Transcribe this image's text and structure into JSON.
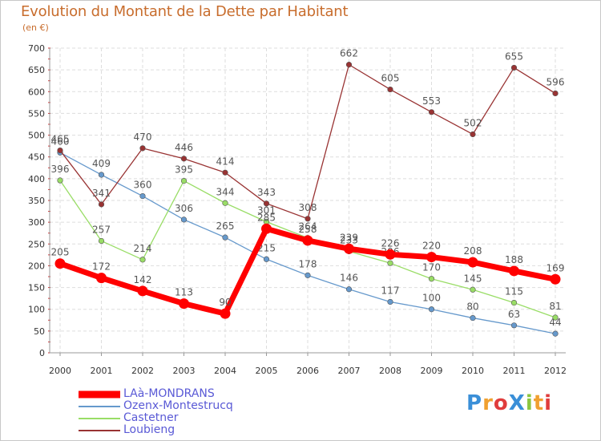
{
  "title": "Evolution du Montant de la Dette par Habitant",
  "unit": "(en €)",
  "brand": "ProXiti",
  "chart_data": {
    "type": "line",
    "categories": [
      "2000",
      "2001",
      "2002",
      "2003",
      "2004",
      "2005",
      "2006",
      "2007",
      "2008",
      "2009",
      "2010",
      "2011",
      "2012"
    ],
    "ylim": [
      0,
      700
    ],
    "yticks": [
      0,
      50,
      100,
      150,
      200,
      250,
      300,
      350,
      400,
      450,
      500,
      550,
      600,
      650,
      700
    ],
    "grid": true,
    "legend_position": "bottom-left",
    "series": [
      {
        "name": "LAà-MONDRANS",
        "color": "#ff0000",
        "emphasis": true,
        "values": [
          205,
          172,
          142,
          113,
          90,
          285,
          258,
          239,
          226,
          220,
          208,
          188,
          169
        ]
      },
      {
        "name": "Ozenx-Montestrucq",
        "color": "#6699cc",
        "values": [
          460,
          409,
          360,
          306,
          265,
          215,
          178,
          146,
          117,
          100,
          80,
          63,
          44
        ]
      },
      {
        "name": "Castetner",
        "color": "#99dd66",
        "values": [
          396,
          257,
          214,
          395,
          344,
          301,
          264,
          233,
          206,
          170,
          145,
          115,
          81
        ]
      },
      {
        "name": "Loubieng",
        "color": "#993333",
        "values": [
          465,
          341,
          470,
          446,
          414,
          343,
          308,
          662,
          605,
          553,
          502,
          655,
          596
        ]
      }
    ]
  }
}
